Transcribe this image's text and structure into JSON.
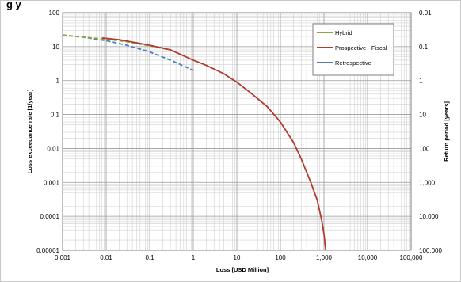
{
  "chart_data": {
    "type": "line",
    "title": "",
    "top_text": "g          y",
    "xlabel": "Loss [USD Million]",
    "ylabel": "Loss exceedance rate [1/year]",
    "y2label": "Return period [years]",
    "x_scale": "log",
    "y_scale": "log",
    "xlim": [
      0.001,
      100000
    ],
    "ylim": [
      1e-05,
      100
    ],
    "x_ticks": [
      "0.001",
      "0.01",
      "0.1",
      "1",
      "10",
      "100",
      "1,000",
      "10,000",
      "100,000"
    ],
    "y_ticks": [
      "0.00001",
      "0.0001",
      "0.001",
      "0.01",
      "0.1",
      "1",
      "10",
      "100"
    ],
    "y2_ticks": [
      "100,000",
      "10,000",
      "1,000",
      "100",
      "10",
      "1",
      "0.1",
      "0.01"
    ],
    "grid": true,
    "legend_position": "top-right",
    "series": [
      {
        "name": "Hybrid",
        "color": "#8aa83a",
        "style": "dashed",
        "x": [
          0.001,
          0.003,
          0.01,
          0.03,
          0.1,
          0.3
        ],
        "y": [
          22,
          19,
          16.5,
          14,
          10.5,
          8
        ]
      },
      {
        "name": "Prospective - Fiscal",
        "color": "#b03a2e",
        "style": "solid",
        "x": [
          0.008,
          0.02,
          0.05,
          0.1,
          0.2,
          0.3,
          0.5,
          1,
          2,
          5,
          10,
          20,
          50,
          100,
          200,
          300,
          500,
          700,
          900,
          1000,
          1100
        ],
        "y": [
          18,
          16,
          13,
          11,
          9,
          8,
          6,
          4,
          2.8,
          1.6,
          0.9,
          0.45,
          0.17,
          0.06,
          0.015,
          0.005,
          0.001,
          0.0003,
          7e-05,
          3e-05,
          1e-05
        ]
      },
      {
        "name": "Retrospective",
        "color": "#4a7ebb",
        "style": "dashed",
        "x": [
          0.001,
          0.003,
          0.01,
          0.03,
          0.1,
          0.3,
          1
        ],
        "y": [
          22,
          19,
          15,
          11,
          7,
          4,
          2
        ]
      }
    ]
  }
}
